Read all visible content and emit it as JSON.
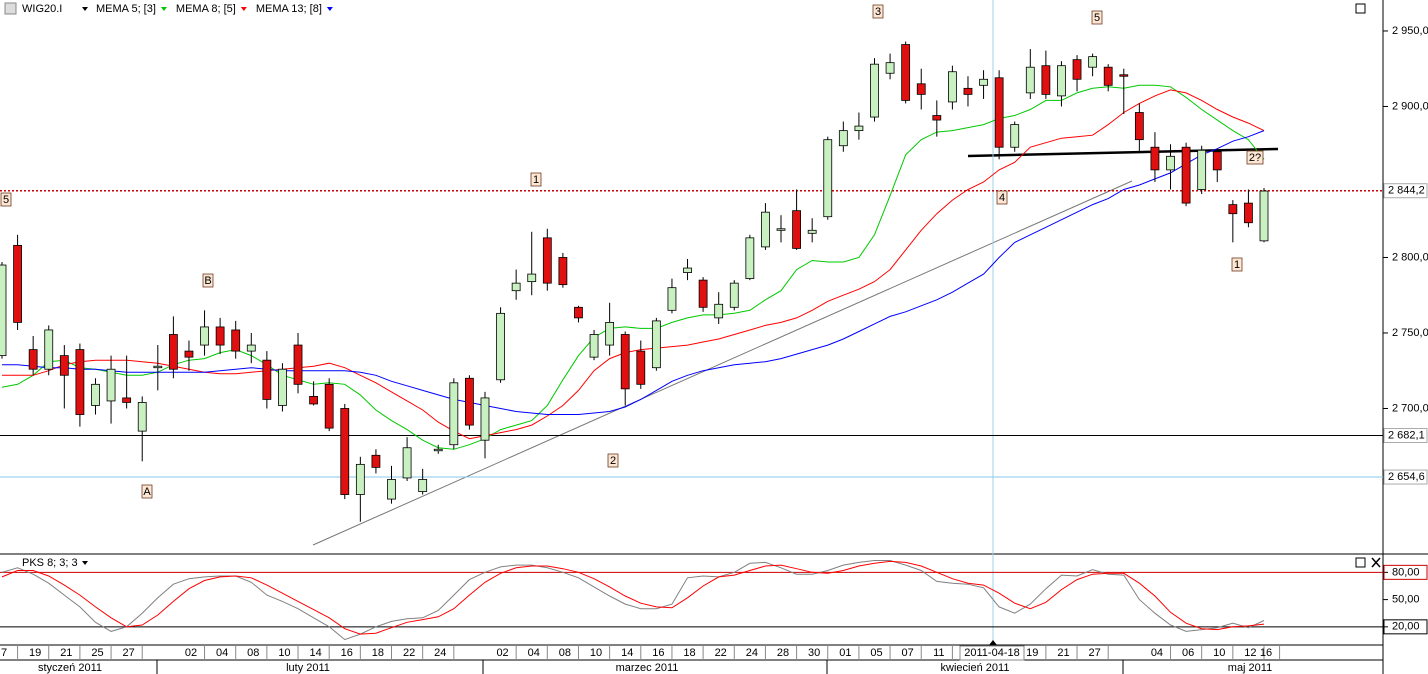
{
  "chart_data": [
    {
      "type": "candlestick",
      "title": "WIG20.I",
      "categories": [
        "7",
        null,
        "19",
        null,
        "21",
        null,
        "25",
        null,
        "27",
        null,
        null,
        null,
        "02",
        null,
        "04",
        null,
        "08",
        null,
        "10",
        null,
        "14",
        null,
        "16",
        null,
        "18",
        null,
        "22",
        null,
        "24",
        null,
        null,
        null,
        "02",
        null,
        "04",
        null,
        "08",
        null,
        "10",
        null,
        "14",
        null,
        "16",
        null,
        "18",
        null,
        "22",
        null,
        "24",
        null,
        "28",
        null,
        "30",
        null,
        "01",
        null,
        "05",
        null,
        "07",
        null,
        "11",
        null,
        null,
        null,
        null,
        null,
        "19",
        null,
        "21",
        null,
        "27",
        null,
        null,
        null,
        "04",
        null,
        "06",
        null,
        "10",
        null,
        "12",
        "16"
      ],
      "months": [
        "styczeń 2011",
        "luty 2011",
        "marzec 2011",
        "kwiecień 2011",
        "maj 2011"
      ],
      "cursor": "2011-04-18",
      "up_color": "#c8f0c0",
      "down_color": "#e01010",
      "open": [
        2735,
        2808,
        2739,
        2726,
        2735,
        2739,
        2702,
        2705,
        2707,
        2685,
        2727,
        2749,
        2738,
        2742,
        2754,
        2752,
        2738,
        2732,
        2702,
        2742,
        2708,
        2716,
        2700,
        2643,
        2669,
        2640,
        2654,
        2645,
        2672,
        2676,
        2720,
        2679,
        2719,
        2778,
        2784,
        2813,
        2800,
        2767,
        2734,
        2742,
        2749,
        2738,
        2727,
        2765,
        2790,
        2785,
        2760,
        2767,
        2786,
        2807,
        2818,
        2831,
        2816,
        2827,
        2874,
        2884,
        2893,
        2922,
        2941,
        2915,
        2894,
        2903,
        2912,
        2914,
        2919,
        2873,
        2909,
        2927,
        2907,
        2931,
        2926,
        2926,
        2921,
        2896,
        2873,
        2858,
        2873,
        2845,
        2870,
        2835,
        2836,
        2811
      ],
      "high": [
        2797,
        2815,
        2748,
        2755,
        2742,
        2743,
        2720,
        2735,
        2735,
        2708,
        2742,
        2761,
        2745,
        2765,
        2760,
        2758,
        2750,
        2738,
        2730,
        2750,
        2718,
        2720,
        2703,
        2668,
        2673,
        2662,
        2681,
        2660,
        2676,
        2720,
        2722,
        2711,
        2767,
        2792,
        2817,
        2819,
        2803,
        2768,
        2752,
        2770,
        2751,
        2745,
        2760,
        2786,
        2799,
        2787,
        2777,
        2785,
        2815,
        2836,
        2828,
        2845,
        2826,
        2880,
        2890,
        2896,
        2932,
        2935,
        2943,
        2925,
        2904,
        2927,
        2920,
        2924,
        2924,
        2890,
        2938,
        2937,
        2930,
        2934,
        2935,
        2928,
        2925,
        2902,
        2883,
        2875,
        2876,
        2874,
        2872,
        2838,
        2845,
        2846
      ],
      "low": [
        2733,
        2752,
        2722,
        2722,
        2700,
        2688,
        2696,
        2690,
        2700,
        2665,
        2712,
        2720,
        2725,
        2735,
        2736,
        2733,
        2730,
        2700,
        2698,
        2710,
        2702,
        2685,
        2640,
        2625,
        2657,
        2637,
        2652,
        2643,
        2670,
        2673,
        2686,
        2667,
        2717,
        2772,
        2775,
        2778,
        2780,
        2757,
        2732,
        2735,
        2702,
        2713,
        2725,
        2763,
        2785,
        2764,
        2756,
        2765,
        2785,
        2805,
        2810,
        2805,
        2810,
        2825,
        2870,
        2878,
        2890,
        2918,
        2902,
        2898,
        2880,
        2898,
        2900,
        2905,
        2865,
        2870,
        2905,
        2905,
        2900,
        2910,
        2920,
        2910,
        2895,
        2870,
        2850,
        2845,
        2834,
        2842,
        2850,
        2810,
        2820,
        2810
      ],
      "close": [
        2795,
        2757,
        2726,
        2752,
        2722,
        2696,
        2716,
        2726,
        2704,
        2704,
        2728,
        2726,
        2734,
        2754,
        2742,
        2738,
        2742,
        2706,
        2726,
        2716,
        2703,
        2687,
        2643,
        2663,
        2661,
        2653,
        2674,
        2653,
        2673,
        2717,
        2689,
        2707,
        2763,
        2783,
        2789,
        2783,
        2782,
        2760,
        2749,
        2757,
        2713,
        2716,
        2758,
        2780,
        2793,
        2767,
        2769,
        2783,
        2813,
        2830,
        2819,
        2806,
        2818,
        2878,
        2884,
        2887,
        2928,
        2929,
        2904,
        2908,
        2891,
        2923,
        2908,
        2918,
        2873,
        2888,
        2926,
        2908,
        2927,
        2918,
        2933,
        2914,
        2920,
        2878,
        2858,
        2867,
        2836,
        2871,
        2858,
        2829,
        2823,
        2844
      ],
      "series": [
        {
          "name": "MEMA 5; [3]",
          "color": "#00c800",
          "values": [
            2714,
            2716,
            2722,
            2731,
            2732,
            2727,
            2726,
            2724,
            2722,
            2722,
            2724,
            2729,
            2732,
            2733,
            2737,
            2739,
            2735,
            2729,
            2722,
            2719,
            2716,
            2717,
            2716,
            2709,
            2699,
            2692,
            2686,
            2679,
            2674,
            2673,
            2676,
            2680,
            2686,
            2689,
            2692,
            2702,
            2719,
            2735,
            2747,
            2753,
            2754,
            2753,
            2753,
            2757,
            2760,
            2762,
            2762,
            2763,
            2765,
            2772,
            2778,
            2792,
            2798,
            2797,
            2797,
            2800,
            2815,
            2841,
            2868,
            2878,
            2883,
            2884,
            2886,
            2888,
            2892,
            2894,
            2898,
            2904,
            2904,
            2909,
            2912,
            2913,
            2912,
            2914,
            2914,
            2913,
            2906,
            2898,
            2891,
            2884,
            2878,
            2865
          ]
        },
        {
          "name": "MEMA 8; [5]",
          "color": "#ff0000",
          "values": [
            2722,
            2722,
            2722,
            2725,
            2729,
            2731,
            2732,
            2732,
            2732,
            2731,
            2730,
            2728,
            2726,
            2724,
            2723,
            2723,
            2724,
            2725,
            2726,
            2727,
            2728,
            2730,
            2727,
            2722,
            2717,
            2711,
            2705,
            2699,
            2691,
            2685,
            2680,
            2682,
            2684,
            2686,
            2689,
            2695,
            2702,
            2712,
            2725,
            2733,
            2737,
            2739,
            2740,
            2741,
            2742,
            2744,
            2746,
            2749,
            2752,
            2755,
            2757,
            2760,
            2765,
            2771,
            2775,
            2779,
            2784,
            2792,
            2805,
            2818,
            2829,
            2838,
            2845,
            2850,
            2858,
            2863,
            2873,
            2876,
            2879,
            2880,
            2881,
            2888,
            2896,
            2902,
            2907,
            2911,
            2909,
            2904,
            2898,
            2893,
            2889,
            2884
          ]
        },
        {
          "name": "MEMA 13; [8]",
          "color": "#0000ff",
          "values": [
            2729,
            2729,
            2728,
            2727,
            2727,
            2726,
            2726,
            2725,
            2724,
            2724,
            2724,
            2724,
            2724,
            2724,
            2725,
            2726,
            2727,
            2726,
            2725,
            2725,
            2725,
            2725,
            2725,
            2724,
            2722,
            2718,
            2715,
            2712,
            2709,
            2706,
            2704,
            2702,
            2700,
            2698,
            2697,
            2696,
            2696,
            2696,
            2697,
            2698,
            2701,
            2706,
            2712,
            2718,
            2722,
            2725,
            2727,
            2729,
            2730,
            2731,
            2733,
            2736,
            2739,
            2742,
            2746,
            2751,
            2756,
            2761,
            2764,
            2768,
            2772,
            2777,
            2783,
            2789,
            2800,
            2810,
            2815,
            2820,
            2825,
            2830,
            2835,
            2839,
            2845,
            2848,
            2852,
            2856,
            2862,
            2868,
            2872,
            2877,
            2880,
            2884
          ]
        }
      ],
      "ylim": [
        2604.3,
        2970.5
      ],
      "yticks": [
        {
          "value": 2950,
          "label": "2 950,0"
        },
        {
          "value": 2900,
          "label": "2 900,0"
        },
        {
          "value": 2800,
          "label": "2 800,0"
        },
        {
          "value": 2750,
          "label": "2 750,0"
        },
        {
          "value": 2700,
          "label": "2 700,0"
        }
      ],
      "hlines": [
        {
          "value": 2844.2,
          "label": "2 844,2",
          "color": "#cc0000"
        },
        {
          "value": 2682.1,
          "label": "2 682,1",
          "color": "#000000"
        },
        {
          "value": 2654.6,
          "label": "2 654,6",
          "color": "#87c8e8"
        }
      ],
      "annotations": [
        "3",
        "5",
        "1",
        "5",
        "B",
        "A",
        "2",
        "4",
        "2?",
        "1"
      ]
    },
    {
      "type": "line",
      "title": "PKS 8; 3; 3",
      "series": [
        {
          "color": "#808080",
          "values": [
            80,
            85,
            78,
            68,
            55,
            42,
            25,
            15,
            20,
            35,
            52,
            67,
            73,
            75,
            76,
            76,
            69,
            55,
            48,
            40,
            30,
            20,
            6,
            12,
            20,
            26,
            29,
            30,
            38,
            55,
            72,
            80,
            86,
            88,
            88,
            85,
            80,
            74,
            64,
            54,
            45,
            40,
            40,
            45,
            74,
            76,
            75,
            80,
            90,
            91,
            85,
            78,
            78,
            82,
            88,
            91,
            93,
            93,
            88,
            82,
            70,
            68,
            67,
            63,
            42,
            35,
            45,
            62,
            77,
            76,
            83,
            78,
            77,
            50,
            35,
            22,
            15,
            17,
            19,
            24,
            19,
            27
          ]
        },
        {
          "color": "#ff0000",
          "values": [
            75,
            82,
            82,
            76,
            66,
            55,
            42,
            30,
            20,
            22,
            33,
            48,
            62,
            71,
            75,
            76,
            74,
            66,
            57,
            48,
            39,
            30,
            18,
            12,
            13,
            19,
            25,
            28,
            31,
            40,
            55,
            69,
            79,
            85,
            87,
            87,
            84,
            80,
            73,
            64,
            54,
            46,
            42,
            41,
            52,
            65,
            75,
            77,
            82,
            87,
            88,
            84,
            80,
            79,
            82,
            87,
            90,
            92,
            91,
            87,
            80,
            73,
            68,
            66,
            57,
            46,
            40,
            47,
            61,
            72,
            78,
            79,
            79,
            68,
            54,
            36,
            24,
            18,
            17,
            20,
            21,
            23
          ]
        }
      ],
      "ylim": [
        0,
        98
      ],
      "yticks": [
        {
          "value": 80,
          "label": "80,00"
        },
        {
          "value": 50,
          "label": "50,00"
        },
        {
          "value": 20,
          "label": "20,00"
        }
      ],
      "levels": [
        {
          "value": 80,
          "color": "#cc0000"
        },
        {
          "value": 20,
          "color": "#000000"
        }
      ]
    }
  ]
}
